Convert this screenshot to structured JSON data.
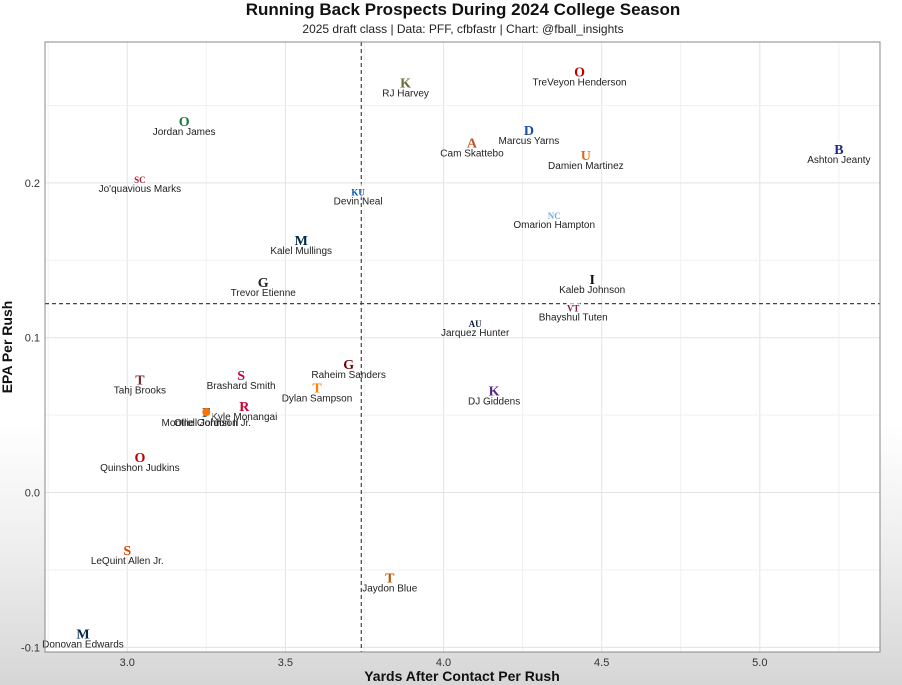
{
  "header": {
    "title": "Running Back Prospects During 2024 College Season",
    "subtitle": "2025 draft class | Data: PFF, cfbfastr | Chart: @fball_insights"
  },
  "chart_data": {
    "type": "scatter",
    "title": "Running Back Prospects During 2024 College Season",
    "subtitle": "2025 draft class | Data: PFF, cfbfastr | Chart: @fball_insights",
    "xlabel": "Yards After Contact Per Rush",
    "ylabel": "EPA Per Rush",
    "xlim": [
      2.74,
      5.38
    ],
    "ylim": [
      -0.103,
      0.291
    ],
    "xticks": [
      3.0,
      3.5,
      4.0,
      4.5,
      5.0
    ],
    "xtick_labels": [
      "3.0",
      "3.5",
      "4.0",
      "4.5",
      "5.0"
    ],
    "yticks": [
      -0.1,
      0.0,
      0.1,
      0.2
    ],
    "ytick_labels": [
      "-0.1",
      "0.0",
      "0.1",
      "0.2"
    ],
    "grid": true,
    "reference_lines": {
      "x_mean": 3.74,
      "y_mean": 0.122
    },
    "points": [
      {
        "name": "TreVeyon Henderson",
        "x": 4.43,
        "y": 0.272,
        "color": "#bb0000",
        "logo": "ohio-state-logo",
        "glyph": "O"
      },
      {
        "name": "RJ Harvey",
        "x": 3.88,
        "y": 0.265,
        "color": "#6b6b3a",
        "logo": "ucf-logo",
        "glyph": "K"
      },
      {
        "name": "Marcus Yarns",
        "x": 4.27,
        "y": 0.234,
        "color": "#1a4fa0",
        "logo": "delaware-logo",
        "glyph": "D"
      },
      {
        "name": "Cam Skattebo",
        "x": 4.09,
        "y": 0.226,
        "color": "#c0552a",
        "logo": "arizona-state-logo",
        "glyph": "A"
      },
      {
        "name": "Damien Martinez",
        "x": 4.45,
        "y": 0.218,
        "color": "#e0681c",
        "logo": "miami-logo",
        "glyph": "U"
      },
      {
        "name": "Ashton Jeanty",
        "x": 5.25,
        "y": 0.222,
        "color": "#1f2a8a",
        "logo": "boise-state-logo",
        "glyph": "B"
      },
      {
        "name": "Jordan James",
        "x": 3.18,
        "y": 0.24,
        "color": "#1b7a3a",
        "logo": "oregon-logo",
        "glyph": "O"
      },
      {
        "name": "Jo'quavious Marks",
        "x": 3.04,
        "y": 0.203,
        "color": "#9d2235",
        "logo": "usc-logo",
        "glyph": "SC"
      },
      {
        "name": "Devin Neal",
        "x": 3.73,
        "y": 0.195,
        "color": "#0051ba",
        "logo": "kansas-logo",
        "glyph": "KU"
      },
      {
        "name": "Omarion Hampton",
        "x": 4.35,
        "y": 0.18,
        "color": "#7bafd4",
        "logo": "north-carolina-logo",
        "glyph": "NC"
      },
      {
        "name": "Kalel Mullings",
        "x": 3.55,
        "y": 0.163,
        "color": "#00274c",
        "logo": "michigan-logo",
        "glyph": "M"
      },
      {
        "name": "Kaleb Johnson",
        "x": 4.47,
        "y": 0.138,
        "color": "#111111",
        "logo": "iowa-logo",
        "glyph": "I"
      },
      {
        "name": "Trevor Etienne",
        "x": 3.43,
        "y": 0.136,
        "color": "#222222",
        "logo": "georgia-logo",
        "glyph": "G"
      },
      {
        "name": "Bhayshul Tuten",
        "x": 4.41,
        "y": 0.12,
        "color": "#861f41",
        "logo": "virginia-tech-logo",
        "glyph": "VT"
      },
      {
        "name": "Jarquez Hunter",
        "x": 4.1,
        "y": 0.11,
        "color": "#0c2340",
        "logo": "auburn-logo",
        "glyph": "AU"
      },
      {
        "name": "Raheim Sanders",
        "x": 3.7,
        "y": 0.083,
        "color": "#73000a",
        "logo": "south-carolina-logo",
        "glyph": "G"
      },
      {
        "name": "Brashard Smith",
        "x": 3.36,
        "y": 0.076,
        "color": "#cc0035",
        "logo": "smu-logo",
        "glyph": "S"
      },
      {
        "name": "Tahj Brooks",
        "x": 3.04,
        "y": 0.073,
        "color": "#7a2a2a",
        "logo": "texas-tech-logo",
        "glyph": "T"
      },
      {
        "name": "Dylan Sampson",
        "x": 3.6,
        "y": 0.068,
        "color": "#ff8200",
        "logo": "tennessee-logo",
        "glyph": "T"
      },
      {
        "name": "DJ Giddens",
        "x": 4.16,
        "y": 0.066,
        "color": "#512888",
        "logo": "kansas-state-logo",
        "glyph": "K"
      },
      {
        "name": "Kyle Monangai",
        "x": 3.37,
        "y": 0.056,
        "color": "#cc0033",
        "logo": "rutgers-logo",
        "glyph": "R"
      },
      {
        "name": "Montrell Johnson Jr.",
        "x": 3.25,
        "y": 0.052,
        "color": "#2f6a4a",
        "logo": "florida-logo",
        "glyph": "F"
      },
      {
        "name": "Ollie Gordon II",
        "x": 3.25,
        "y": 0.052,
        "color": "#ff7300",
        "logo": "oklahoma-state-logo",
        "glyph": ""
      },
      {
        "name": "Quinshon Judkins",
        "x": 3.04,
        "y": 0.023,
        "color": "#bb0000",
        "logo": "ohio-state-logo",
        "glyph": "O"
      },
      {
        "name": "LeQuint Allen Jr.",
        "x": 3.0,
        "y": -0.037,
        "color": "#d44500",
        "logo": "syracuse-logo",
        "glyph": "S"
      },
      {
        "name": "Jaydon Blue",
        "x": 3.83,
        "y": -0.055,
        "color": "#bf5700",
        "logo": "texas-logo",
        "glyph": "T"
      },
      {
        "name": "Donovan Edwards",
        "x": 2.86,
        "y": -0.091,
        "color": "#00274c",
        "logo": "michigan-logo",
        "glyph": "M"
      }
    ]
  }
}
